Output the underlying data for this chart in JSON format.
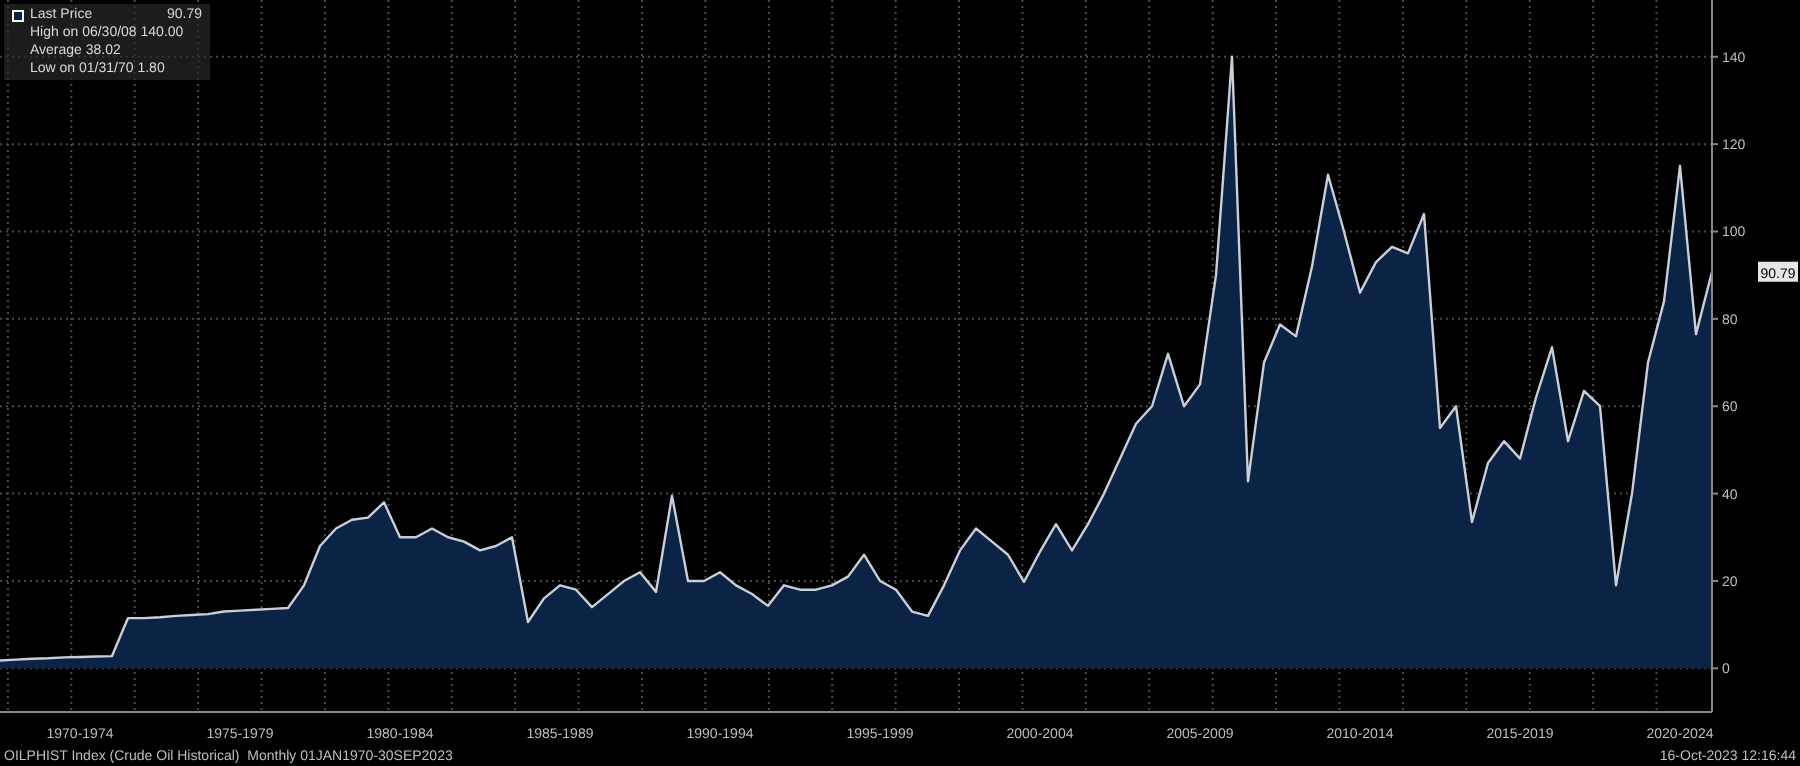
{
  "chart_data": {
    "type": "area",
    "categories": [
      null,
      null,
      null,
      null,
      null,
      "1970-1974",
      null,
      null,
      null,
      null,
      null,
      null,
      null,
      null,
      null,
      "1975-1979",
      null,
      null,
      null,
      null,
      null,
      null,
      null,
      null,
      null,
      "1980-1984",
      null,
      null,
      null,
      null,
      null,
      null,
      null,
      null,
      null,
      "1985-1989",
      null,
      null,
      null,
      null,
      null,
      null,
      null,
      null,
      null,
      "1990-1994",
      null,
      null,
      null,
      null,
      null,
      null,
      null,
      null,
      null,
      "1995-1999",
      null,
      null,
      null,
      null,
      null,
      null,
      null,
      null,
      null,
      "2000-2004",
      null,
      null,
      null,
      null,
      null,
      null,
      null,
      null,
      null,
      "2005-2009",
      null,
      null,
      null,
      null,
      null,
      null,
      null,
      null,
      null,
      "2010-2014",
      null,
      null,
      null,
      null,
      null,
      null,
      null,
      null,
      null,
      "2015-2019",
      null,
      null,
      null,
      null,
      null,
      null,
      null,
      null,
      null,
      "2020-2024",
      null,
      null
    ],
    "series": [
      {
        "name": "Last Price",
        "color": "#0b2344",
        "values": [
          1.8,
          2,
          2.2,
          2.3,
          2.5,
          2.6,
          2.7,
          2.8,
          11.5,
          11.5,
          11.7,
          12,
          12.2,
          12.4,
          13,
          13.2,
          13.4,
          13.6,
          13.8,
          19,
          28,
          32,
          34,
          34.5,
          38,
          30,
          30,
          32,
          30,
          29,
          27,
          28,
          30,
          10.6,
          16,
          19,
          18,
          14,
          17,
          20,
          22,
          17.5,
          39.5,
          20,
          20,
          22,
          19,
          17,
          14.3,
          19,
          18,
          18,
          19,
          21,
          26,
          20,
          18,
          13,
          12,
          19,
          27,
          32,
          29,
          26,
          19.8,
          26.7,
          33,
          27,
          33,
          40,
          48,
          56,
          60,
          72,
          60,
          65,
          90,
          140,
          42.8,
          70,
          78.7,
          76,
          92,
          113,
          100,
          86,
          93,
          96.5,
          95,
          104,
          55,
          60,
          33.5,
          47,
          52,
          48,
          62,
          73.5,
          52,
          63.5,
          60,
          19,
          40,
          70,
          84,
          115,
          76.5,
          90.79
        ]
      }
    ],
    "ylim": [
      -10,
      153
    ],
    "yticks": [
      0,
      20,
      40,
      60,
      80,
      100,
      120,
      140
    ],
    "grid": true,
    "legend": "top left",
    "annotations": [
      "90.79",
      "90.79",
      "High on 06/30/08 140.00",
      "Average 38.02",
      "Low on 01/31/70 1.80",
      "OILPHIST Index (Crude Oil Historical)  Monthly 01JAN1970-30SEP2023",
      "16-Oct-2023 12:16:44"
    ]
  }
}
